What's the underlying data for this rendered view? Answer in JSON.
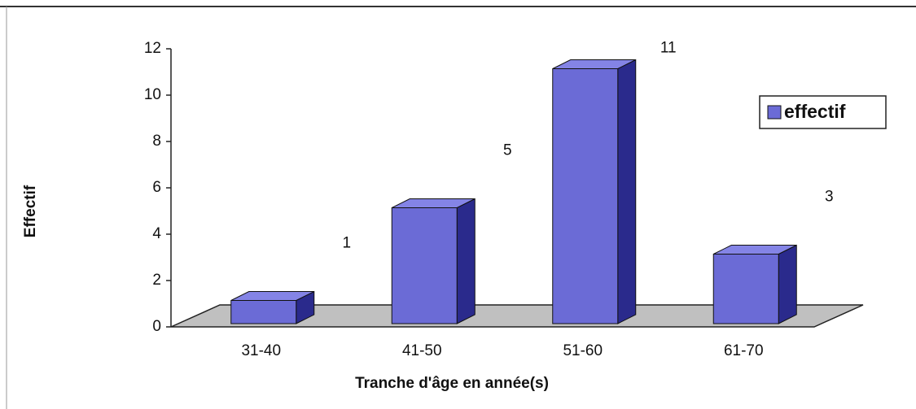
{
  "chart_data": {
    "type": "bar3d",
    "y_label": "Effectif",
    "x_label": "Tranche d'âge en année(s)",
    "categories": [
      "31-40",
      "41-50",
      "51-60",
      "61-70"
    ],
    "series": [
      {
        "name": "effectif",
        "color": "#6b6bd6",
        "values": [
          1,
          5,
          11,
          3
        ]
      }
    ],
    "ylim": [
      0,
      12
    ],
    "yticks": [
      0,
      2,
      4,
      6,
      8,
      10,
      12
    ],
    "legend": "right"
  }
}
